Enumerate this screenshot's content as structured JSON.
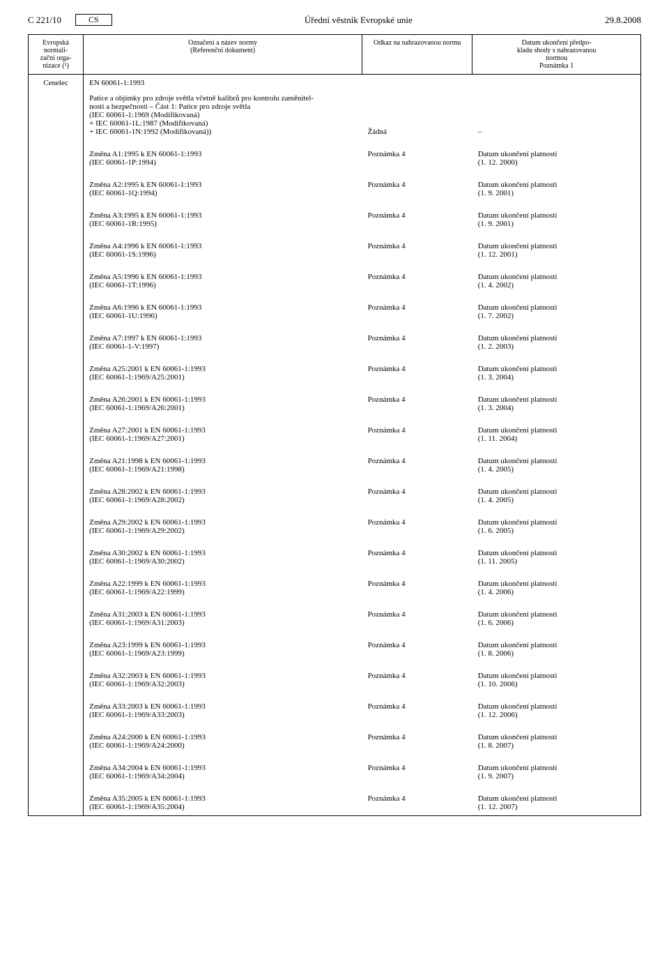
{
  "header": {
    "page_ref": "C 221/10",
    "lang": "CS",
    "journal": "Úřední věstník Evropské unie",
    "date": "29.8.2008"
  },
  "columns": {
    "org": "Evropská normali-\nzační orga-\nnizace (¹)",
    "title": "Označení a název normy\n(Referenční dokument)",
    "ref": "Odkaz na nahrazovanou normu",
    "date": "Datum ukončení předpo-\nkladu shody s nahrazovanou\nnormou\nPoznámka 1"
  },
  "base": {
    "org": "Cenelec",
    "std": "EN 60061-1:1993",
    "desc": "Patice a objímky pro zdroje světla včetně kalibrů pro kontrolu zaměnitel-\nnosti a bezpečnosti – Část 1: Patice pro zdroje světla\n(IEC 60061-1:1969 (Modifikovaná)\n+ IEC 60061-1L:1987 (Modifikovaná)\n+ IEC 60061-1N:1992 (Modifikovaná))",
    "ref": "Žádná",
    "date": "–"
  },
  "amendments": [
    {
      "title": "Změna A1:1995 k EN 60061-1:1993",
      "sub": "(IEC 60061-1P:1994)",
      "ref": "Poznámka 4",
      "date": "Datum ukončení platnosti\n(1. 12. 2000)"
    },
    {
      "title": "Změna A2:1995 k EN 60061-1:1993",
      "sub": "(IEC 60061-1Q:1994)",
      "ref": "Poznámka 4",
      "date": "Datum ukončení platnosti\n(1. 9. 2001)"
    },
    {
      "title": "Změna A3:1995 k EN 60061-1:1993",
      "sub": "(IEC 60061-1R:1995)",
      "ref": "Poznámka 4",
      "date": "Datum ukončení platnosti\n(1. 9. 2001)"
    },
    {
      "title": "Změna A4:1996 k EN 60061-1:1993",
      "sub": "(IEC 60061-1S:1996)",
      "ref": "Poznámka 4",
      "date": "Datum ukončení platnosti\n(1. 12. 2001)"
    },
    {
      "title": "Změna A5:1996 k EN 60061-1:1993",
      "sub": "(IEC 60061-1T:1996)",
      "ref": "Poznámka 4",
      "date": "Datum ukončení platnosti\n(1. 4. 2002)"
    },
    {
      "title": "Změna A6:1996 k EN 60061-1:1993",
      "sub": "(IEC 60061-1U:1996)",
      "ref": "Poznámka 4",
      "date": "Datum ukončení platnosti\n(1. 7. 2002)"
    },
    {
      "title": "Změna A7:1997 k EN 60061-1:1993",
      "sub": "(IEC 60061-1-V:1997)",
      "ref": "Poznámka 4",
      "date": "Datum ukončení platnosti\n(1. 2. 2003)"
    },
    {
      "title": "Změna A25:2001 k EN 60061-1:1993",
      "sub": "(IEC 60061-1:1969/A25:2001)",
      "ref": "Poznámka 4",
      "date": "Datum ukončení platnosti\n(1. 3. 2004)"
    },
    {
      "title": "Změna A26:2001 k EN 60061-1:1993",
      "sub": "(IEC 60061-1:1969/A26:2001)",
      "ref": "Poznámka 4",
      "date": "Datum ukončení platnosti\n(1. 3. 2004)"
    },
    {
      "title": "Změna A27:2001 k EN 60061-1:1993",
      "sub": "(IEC 60061-1:1969/A27:2001)",
      "ref": "Poznámka 4",
      "date": "Datum ukončení platnosti\n(1. 11. 2004)"
    },
    {
      "title": "Změna A21:1998 k EN 60061-1:1993",
      "sub": "(IEC 60061-1:1969/A21:1998)",
      "ref": "Poznámka 4",
      "date": "Datum ukončení platnosti\n(1. 4. 2005)"
    },
    {
      "title": "Změna A28:2002 k EN 60061-1:1993",
      "sub": "(IEC 60061-1:1969/A28:2002)",
      "ref": "Poznámka 4",
      "date": "Datum ukončení platnosti\n(1. 4. 2005)"
    },
    {
      "title": "Změna A29:2002 k EN 60061-1:1993",
      "sub": "(IEC 60061-1:1969/A29:2002)",
      "ref": "Poznámka 4",
      "date": "Datum ukončení platnosti\n(1. 6. 2005)"
    },
    {
      "title": "Změna A30:2002 k EN 60061-1:1993",
      "sub": "(IEC 60061-1:1969/A30:2002)",
      "ref": "Poznámka 4",
      "date": "Datum ukončení platnosti\n(1. 11. 2005)"
    },
    {
      "title": "Změna A22:1999 k EN 60061-1:1993",
      "sub": "(IEC 60061-1:1969/A22:1999)",
      "ref": "Poznámka 4",
      "date": "Datum ukončení platnosti\n(1. 4. 2006)"
    },
    {
      "title": "Změna A31:2003 k EN 60061-1:1993",
      "sub": "(IEC 60061-1:1969/A31:2003)",
      "ref": "Poznámka 4",
      "date": "Datum ukončení platnosti\n(1. 6. 2006)"
    },
    {
      "title": "Změna A23:1999 k EN 60061-1:1993",
      "sub": "(IEC 60061-1:1969/A23:1999)",
      "ref": "Poznámka 4",
      "date": "Datum ukončení platnosti\n(1. 8. 2006)"
    },
    {
      "title": "Změna A32:2003 k EN 60061-1:1993",
      "sub": "(IEC 60061-1:1969/A32:2003)",
      "ref": "Poznámka 4",
      "date": "Datum ukončení platnosti\n(1. 10. 2006)"
    },
    {
      "title": "Změna A33:2003 k EN 60061-1:1993",
      "sub": "(IEC 60061-1:1969/A33:2003)",
      "ref": "Poznámka 4",
      "date": "Datum ukončení platnosti\n(1. 12. 2006)"
    },
    {
      "title": "Změna A24:2000 k EN 60061-1:1993",
      "sub": "(IEC 60061-1:1969/A24:2000)",
      "ref": "Poznámka 4",
      "date": "Datum ukončení platnosti\n(1. 8. 2007)"
    },
    {
      "title": "Změna A34:2004 k EN 60061-1:1993",
      "sub": "(IEC 60061-1:1969/A34:2004)",
      "ref": "Poznámka 4",
      "date": "Datum ukončení platnosti\n(1. 9. 2007)"
    },
    {
      "title": "Změna A35:2005 k EN 60061-1:1993",
      "sub": "(IEC 60061-1:1969/A35:2004)",
      "ref": "Poznámka 4",
      "date": "Datum ukončení platnosti\n(1. 12. 2007)"
    }
  ]
}
